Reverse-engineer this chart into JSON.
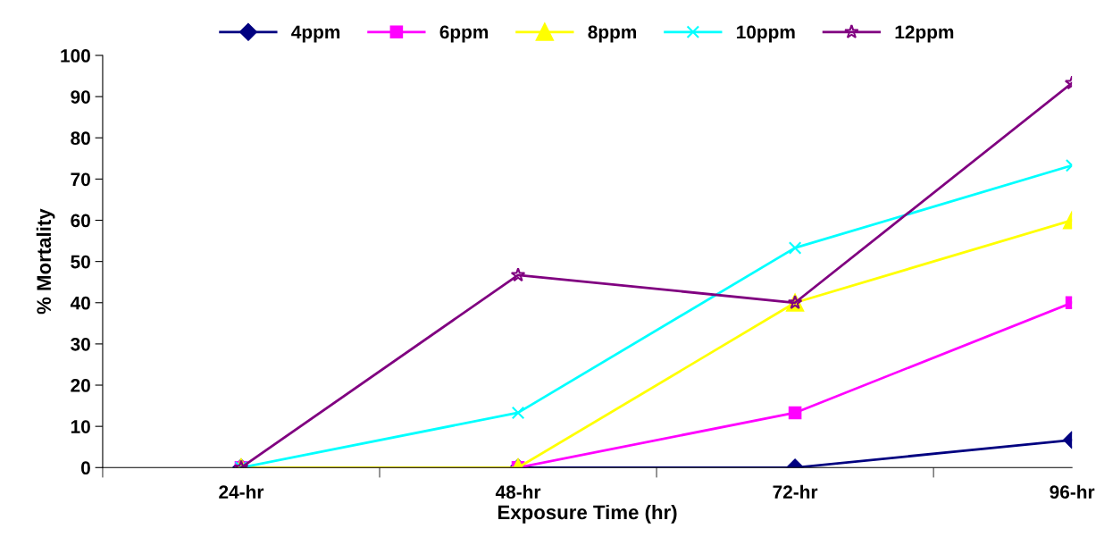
{
  "chart_data": {
    "type": "line",
    "xlabel": "Exposure Time (hr)",
    "ylabel": "% Mortality",
    "categories": [
      "24-hr",
      "48-hr",
      "72-hr",
      "96-hr"
    ],
    "series": [
      {
        "name": "4ppm",
        "color": "#000080",
        "marker": "diamond",
        "values": [
          0,
          0,
          0,
          6.7
        ]
      },
      {
        "name": "6ppm",
        "color": "#ff00ff",
        "marker": "square",
        "values": [
          0,
          0,
          13.3,
          40
        ]
      },
      {
        "name": "8ppm",
        "color": "#ffff00",
        "marker": "triangle",
        "values": [
          0,
          0,
          40,
          60
        ]
      },
      {
        "name": "10ppm",
        "color": "#00ffff",
        "marker": "cross",
        "values": [
          0,
          13.3,
          53.3,
          73.3
        ]
      },
      {
        "name": "12ppm",
        "color": "#800080",
        "marker": "star",
        "values": [
          0,
          46.7,
          40,
          93.3
        ]
      }
    ],
    "ylim": [
      0,
      100
    ],
    "yticks": [
      0,
      10,
      20,
      30,
      40,
      50,
      60,
      70,
      80,
      90,
      100
    ],
    "grid": false,
    "legend": "top",
    "line_style": "solid"
  }
}
